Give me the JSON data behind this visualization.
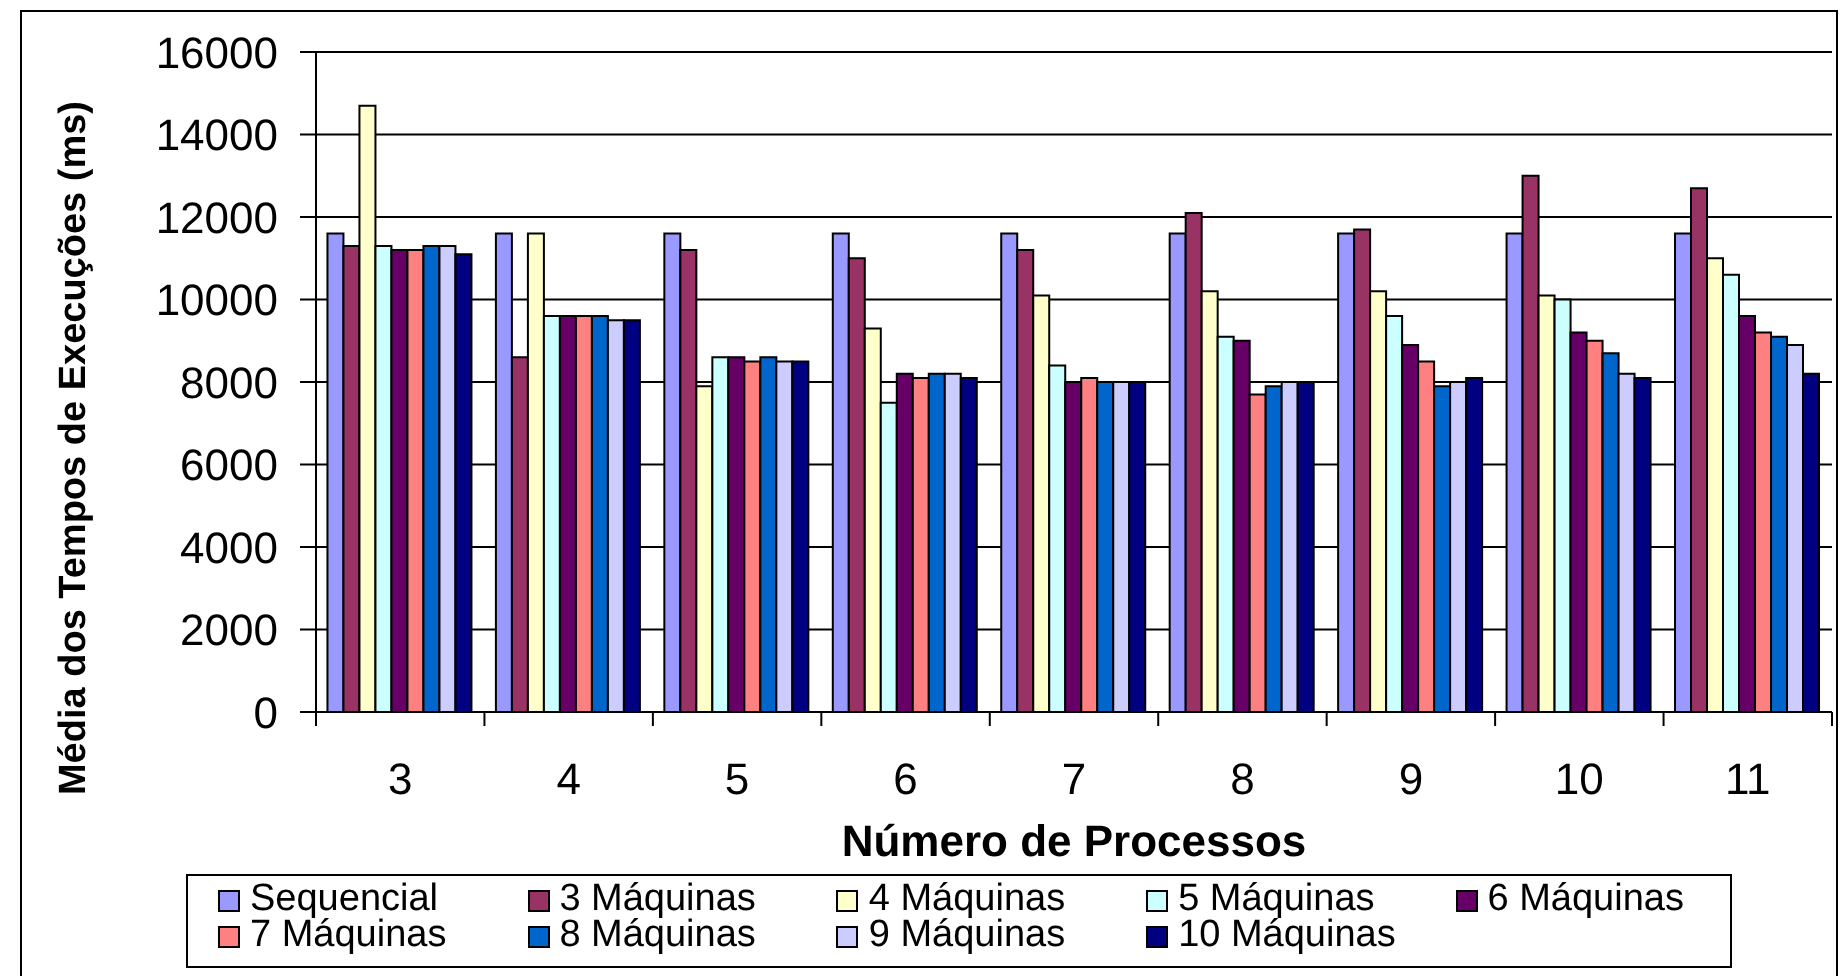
{
  "chart_data": {
    "type": "bar",
    "xlabel": "Número de Processos",
    "ylabel": "Média dos Tempos de Execuções (ms)",
    "categories": [
      "3",
      "4",
      "5",
      "6",
      "7",
      "8",
      "9",
      "10",
      "11"
    ],
    "series": [
      {
        "name": "Sequencial",
        "color": "#9999ff",
        "values": [
          11600,
          11600,
          11600,
          11600,
          11600,
          11600,
          11600,
          11600,
          11600
        ]
      },
      {
        "name": "3 Máquinas",
        "color": "#993366",
        "values": [
          11300,
          8600,
          11200,
          11000,
          11200,
          12100,
          11700,
          13000,
          12700
        ]
      },
      {
        "name": "4 Máquinas",
        "color": "#ffffcc",
        "values": [
          14700,
          11600,
          7900,
          9300,
          10100,
          10200,
          10200,
          10100,
          11000
        ]
      },
      {
        "name": "5 Máquinas",
        "color": "#ccffff",
        "values": [
          11300,
          9600,
          8600,
          7500,
          8400,
          9100,
          9600,
          10000,
          10600
        ]
      },
      {
        "name": "6 Máquinas",
        "color": "#660066",
        "values": [
          11200,
          9600,
          8600,
          8200,
          8000,
          9000,
          8900,
          9200,
          9600
        ]
      },
      {
        "name": "7 Máquinas",
        "color": "#ff8080",
        "values": [
          11200,
          9600,
          8500,
          8100,
          8100,
          7700,
          8500,
          9000,
          9200
        ]
      },
      {
        "name": "8 Máquinas",
        "color": "#0066cc",
        "values": [
          11300,
          9600,
          8600,
          8200,
          8000,
          7900,
          7900,
          8700,
          9100
        ]
      },
      {
        "name": "9 Máquinas",
        "color": "#ccccff",
        "values": [
          11300,
          9500,
          8500,
          8200,
          8000,
          8000,
          8000,
          8200,
          8900
        ]
      },
      {
        "name": "10 Máquinas",
        "color": "#000080",
        "values": [
          11100,
          9500,
          8500,
          8100,
          8000,
          8000,
          8100,
          8100,
          8200
        ]
      }
    ],
    "ylim": [
      0,
      16000
    ],
    "yticks": [
      0,
      2000,
      4000,
      6000,
      8000,
      10000,
      12000,
      14000,
      16000
    ],
    "grid": "y",
    "legend": "bottom"
  }
}
